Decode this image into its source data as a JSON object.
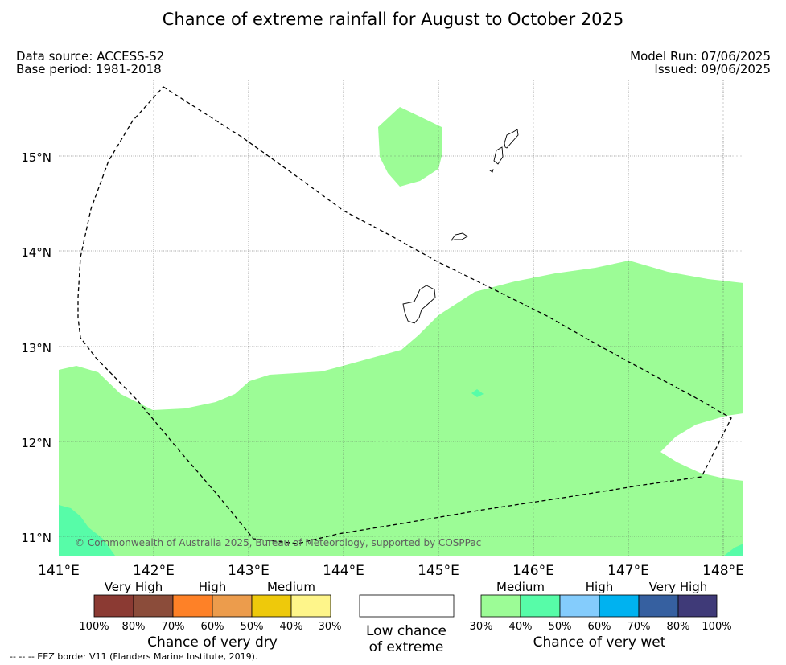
{
  "title": "Chance of extreme rainfall for August to October 2025",
  "meta": {
    "data_source": "Data source: ACCESS-S2",
    "base_period": "Base period: 1981-2018",
    "model_run": "Model Run: 07/06/2025",
    "issued": "Issued: 09/06/2025"
  },
  "map": {
    "lat_labels": [
      "15°N",
      "14°N",
      "13°N",
      "12°N",
      "11°N"
    ],
    "lon_labels": [
      "141°E",
      "142°E",
      "143°E",
      "144°E",
      "145°E",
      "146°E",
      "147°E",
      "148°E"
    ],
    "copyright": "© Commonwealth of Australia 2025, Bureau of Meteorology, supported by COSPPac",
    "colors": {
      "medium_wet": "#9cfc96",
      "high_wet": "#57fca8",
      "eez_border": "#000000"
    }
  },
  "legend_dry": {
    "headers": [
      "Very High",
      "High",
      "Medium"
    ],
    "colors": [
      "#8b3a33",
      "#8b4c3a",
      "#fe8127",
      "#ec9c4c",
      "#eec90b",
      "#fef58a"
    ],
    "ticks": [
      "100%",
      "80%",
      "70%",
      "60%",
      "50%",
      "40%",
      "30%"
    ],
    "caption": "Chance of very dry"
  },
  "legend_low": {
    "caption_line1": "Low chance",
    "caption_line2": "of extreme",
    "color": "#ffffff"
  },
  "legend_wet": {
    "headers": [
      "Medium",
      "High",
      "Very High"
    ],
    "colors": [
      "#9cfc96",
      "#57fca8",
      "#84ccfc",
      "#00b2f0",
      "#3660a0",
      "#3f3a78"
    ],
    "ticks": [
      "30%",
      "40%",
      "50%",
      "60%",
      "70%",
      "80%",
      "100%"
    ],
    "caption": "Chance of very wet"
  },
  "footnote": "--  --  -- EEZ border V11 (Flanders Marine Institute, 2019)."
}
